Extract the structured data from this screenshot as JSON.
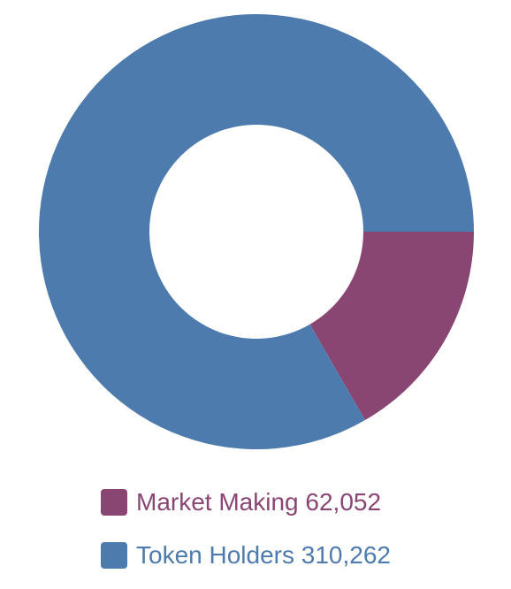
{
  "chart_data": {
    "type": "pie",
    "variant": "donut",
    "slices": [
      {
        "label": "Market Making",
        "value": 62052,
        "value_text": "62,052",
        "color": "#8a4673"
      },
      {
        "label": "Token Holders",
        "value": 310262,
        "value_text": "310,262",
        "color": "#4e7bad"
      }
    ],
    "legend_position": "bottom"
  }
}
